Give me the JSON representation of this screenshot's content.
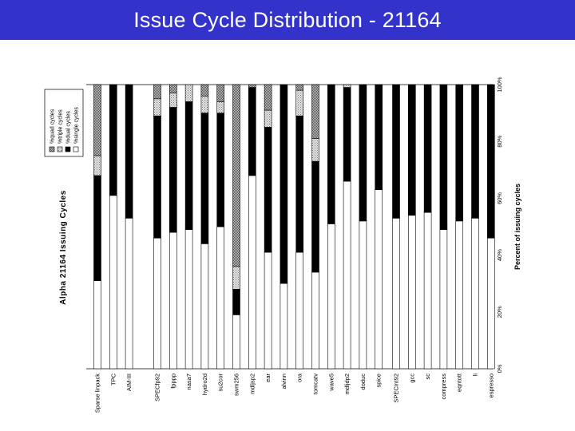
{
  "slide": {
    "title": "Issue Cycle Distribution - 21164"
  },
  "colors": {
    "title_bg": "#3333cc",
    "title_text": "#ffffff"
  },
  "chart_data": {
    "type": "bar",
    "stacked": true,
    "orientation": "horizontal",
    "title": "Alpha 21164 Issuing Cycles",
    "xlabel": "Percent of issuing cycles",
    "ylabel": "",
    "xlim": [
      0,
      100
    ],
    "ticks": [
      "0%",
      "20%",
      "40%",
      "60%",
      "80%",
      "100%"
    ],
    "groups": [
      {
        "categories": [
          "Sparse linpack",
          "TPC",
          "AIM-III"
        ]
      },
      {
        "categories": [
          "SPECfp92",
          "fpppp",
          "nasa7",
          "hydro2d",
          "su2cor",
          "swm256",
          "mdljsp2",
          "ear",
          "alvinn",
          "ora",
          "tomcatv",
          "wave5",
          "mdljdp2",
          "doduc",
          "spice"
        ]
      },
      {
        "categories": [
          "SPECint92",
          "gcc",
          "sc",
          "compress",
          "eqntott",
          "li",
          "espresso"
        ]
      }
    ],
    "categories": [
      "Sparse linpack",
      "TPC",
      "AIM-III",
      "SPECfp92",
      "fpppp",
      "nasa7",
      "hydro2d",
      "su2cor",
      "swm256",
      "mdljsp2",
      "ear",
      "alvinn",
      "ora",
      "tomcatv",
      "wave5",
      "mdljdp2",
      "doduc",
      "spice",
      "SPECint92",
      "gcc",
      "sc",
      "compress",
      "eqntott",
      "li",
      "espresso"
    ],
    "series": [
      {
        "name": "%single cycles",
        "color": "#ffffff",
        "values": [
          31,
          61,
          53,
          46,
          48,
          49,
          44,
          50,
          19,
          68,
          41,
          30,
          41,
          34,
          51,
          66,
          52,
          63,
          53,
          54,
          55,
          49,
          52,
          53,
          46
        ]
      },
      {
        "name": "%dual cycles",
        "color": "#000000",
        "values": [
          37,
          39,
          47,
          43,
          44,
          45,
          46,
          40,
          9,
          31,
          44,
          70,
          48,
          39,
          49,
          33,
          48,
          37,
          47,
          46,
          45,
          51,
          48,
          47,
          54
        ]
      },
      {
        "name": "%triple cycles",
        "color": "#cccccc",
        "values": [
          7,
          0,
          0,
          6,
          5,
          6,
          6,
          4,
          8,
          0,
          6,
          0,
          9,
          8,
          0,
          1,
          0,
          0,
          0,
          0,
          0,
          0,
          0,
          0,
          0
        ]
      },
      {
        "name": "%quad cycles",
        "color": "#888888",
        "values": [
          25,
          0,
          0,
          5,
          3,
          0,
          4,
          6,
          64,
          1,
          9,
          0,
          2,
          19,
          0,
          0,
          0,
          0,
          0,
          0,
          0,
          0,
          0,
          0,
          0
        ]
      }
    ],
    "legend": "top-left"
  }
}
